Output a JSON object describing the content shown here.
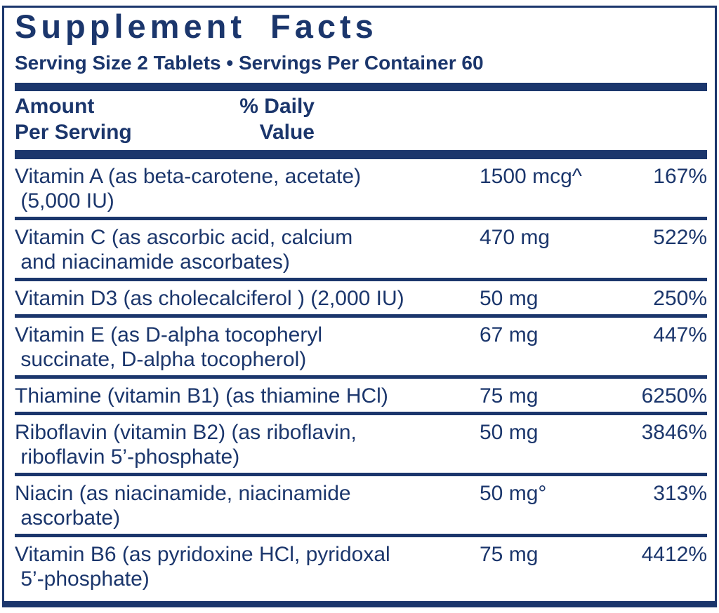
{
  "label": {
    "title": "Supplement Facts",
    "serving_line": "Serving Size 2 Tablets • Servings Per Container 60",
    "colors": {
      "navy": "#1b366c",
      "background": "#ffffff"
    },
    "header": {
      "amount_per_serving": "Amount\nPer Serving",
      "percent_daily_value": "% Daily\nValue"
    },
    "rows": [
      {
        "name": "Vitamin A (as beta-carotene, acetate)\n (5,000 IU)",
        "amount": "1500 mcg^",
        "daily_value": "167%"
      },
      {
        "name": "Vitamin C (as ascorbic acid, calcium\n and niacinamide ascorbates)",
        "amount": "470 mg",
        "daily_value": "522%"
      },
      {
        "name": "Vitamin D3 (as cholecalciferol ) (2,000 IU)",
        "amount": "50 mg",
        "daily_value": "250%"
      },
      {
        "name": "Vitamin E (as D-alpha tocopheryl\n succinate, D-alpha tocopherol)",
        "amount": "67 mg",
        "daily_value": "447%"
      },
      {
        "name": "Thiamine (vitamin B1) (as thiamine HCl)",
        "amount": "75 mg",
        "daily_value": "6250%"
      },
      {
        "name": "Riboflavin (vitamin B2) (as riboflavin,\n riboflavin 5’-phosphate)",
        "amount": "50 mg",
        "daily_value": "3846%"
      },
      {
        "name": "Niacin (as niacinamide, niacinamide\n ascorbate)",
        "amount": "50 mg°",
        "daily_value": "313%"
      },
      {
        "name": "Vitamin B6 (as pyridoxine HCl, pyridoxal\n 5’-phosphate)",
        "amount": "75 mg",
        "daily_value": "4412%"
      }
    ]
  }
}
